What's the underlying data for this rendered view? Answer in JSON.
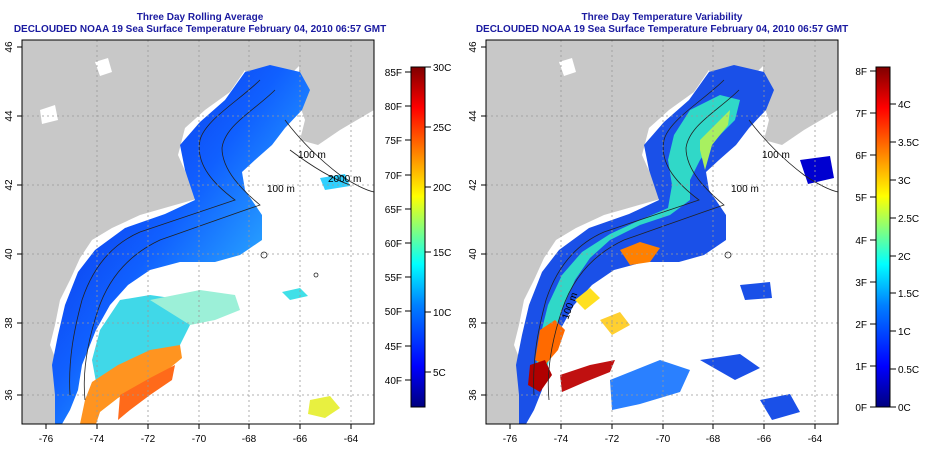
{
  "left_panel": {
    "title": "Three Day Rolling Average",
    "subtitle": "DECLOUDED NOAA 19 Sea Surface Temperature February 04, 2010 06:57 GMT",
    "contour_labels": [
      "100 m",
      "2000 m",
      "100 m"
    ],
    "colorbar": {
      "fahrenheit": [
        "40F",
        "45F",
        "50F",
        "55F",
        "60F",
        "65F",
        "70F",
        "75F",
        "80F",
        "85F"
      ],
      "celsius": [
        "5C",
        "10C",
        "15C",
        "20C",
        "25C",
        "30C"
      ],
      "colors": [
        "#00007f",
        "#0000ff",
        "#0080ff",
        "#00ffff",
        "#80ff80",
        "#ffff00",
        "#ff8000",
        "#ff0000",
        "#7f0000"
      ]
    }
  },
  "right_panel": {
    "title": "Three Day Temperature Variability",
    "subtitle": "DECLOUDED NOAA 19 Sea Surface Temperature February 04, 2010 06:57 GMT",
    "contour_labels": [
      "100 m",
      "100 m",
      "100 m"
    ],
    "colorbar": {
      "fahrenheit": [
        "0F",
        "1F",
        "2F",
        "3F",
        "4F",
        "5F",
        "6F",
        "7F",
        "8F"
      ],
      "celsius": [
        "0C",
        "0.5C",
        "1C",
        "1.5C",
        "2C",
        "2.5C",
        "3C",
        "3.5C",
        "4C"
      ],
      "colors": [
        "#00007f",
        "#0000ff",
        "#0080ff",
        "#00ffff",
        "#80ff80",
        "#ffff00",
        "#ff8000",
        "#ff0000",
        "#7f0000"
      ]
    }
  },
  "axes": {
    "longitude_ticks": [
      "-76",
      "-74",
      "-72",
      "-70",
      "-68",
      "-66",
      "-64"
    ],
    "latitude_ticks": [
      "36",
      "38",
      "40",
      "42",
      "44",
      "46"
    ]
  },
  "colors": {
    "title": "#1a1aa0",
    "land": "#c8c8c8",
    "ocean_no_data": "#ffffff"
  }
}
